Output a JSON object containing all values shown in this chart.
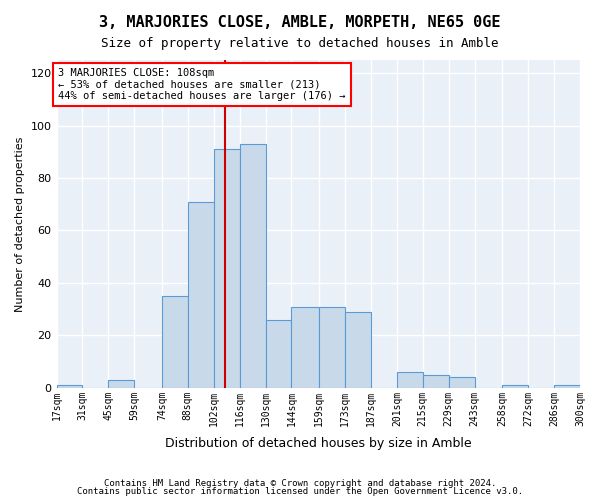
{
  "title": "3, MARJORIES CLOSE, AMBLE, MORPETH, NE65 0GE",
  "subtitle": "Size of property relative to detached houses in Amble",
  "xlabel": "Distribution of detached houses by size in Amble",
  "ylabel": "Number of detached properties",
  "bar_color": "#c8daea",
  "bar_edge_color": "#5b9bd5",
  "background_color": "#eaf0f8",
  "grid_color": "#ffffff",
  "annotation_text": "3 MARJORIES CLOSE: 108sqm\n← 53% of detached houses are smaller (213)\n44% of semi-detached houses are larger (176) →",
  "property_size": 108,
  "vline_color": "#cc0000",
  "bins": [
    17,
    31,
    45,
    59,
    74,
    88,
    102,
    116,
    130,
    144,
    159,
    173,
    187,
    201,
    215,
    229,
    243,
    258,
    272,
    286,
    300
  ],
  "bin_labels": [
    "17sqm",
    "31sqm",
    "45sqm",
    "59sqm",
    "74sqm",
    "88sqm",
    "102sqm",
    "116sqm",
    "130sqm",
    "144sqm",
    "159sqm",
    "173sqm",
    "187sqm",
    "201sqm",
    "215sqm",
    "229sqm",
    "243sqm",
    "258sqm",
    "272sqm",
    "286sqm",
    "300sqm"
  ],
  "counts": [
    1,
    0,
    3,
    0,
    35,
    71,
    91,
    93,
    26,
    31,
    31,
    29,
    0,
    6,
    5,
    4,
    0,
    1,
    0,
    1
  ],
  "ylim": [
    0,
    125
  ],
  "yticks": [
    0,
    20,
    40,
    60,
    80,
    100,
    120
  ],
  "footer1": "Contains HM Land Registry data © Crown copyright and database right 2024.",
  "footer2": "Contains public sector information licensed under the Open Government Licence v3.0."
}
